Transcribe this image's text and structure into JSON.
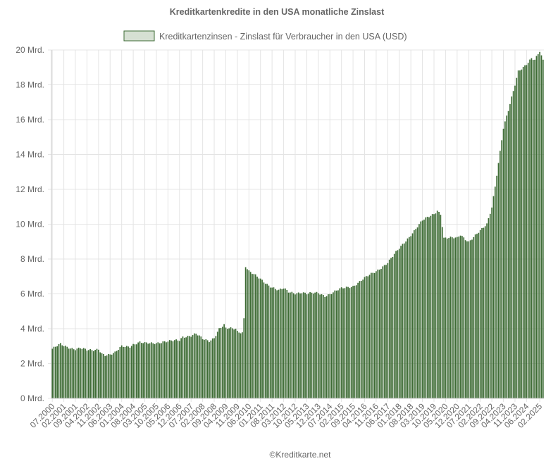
{
  "chart_data": {
    "type": "bar",
    "title": "Kreditkartenkredite in den USA monatliche Zinslast",
    "legend": {
      "label": "Kreditkartenzinsen - Zinslast für Verbraucher in den USA (USD)",
      "placement": "top-center"
    },
    "xlabel": "",
    "ylabel": "",
    "ylim": [
      0,
      20
    ],
    "y_unit": "Mrd.",
    "y_ticks": [
      0,
      2,
      4,
      6,
      8,
      10,
      12,
      14,
      16,
      18,
      20
    ],
    "y_tick_labels": [
      "0 Mrd.",
      "2 Mrd.",
      "4 Mrd.",
      "6 Mrd.",
      "8 Mrd.",
      "10 Mrd.",
      "12 Mrd.",
      "14 Mrd.",
      "16 Mrd.",
      "18 Mrd.",
      "20 Mrd."
    ],
    "x_tick_labels": [
      "07.2000",
      "02.2001",
      "09.2001",
      "04.2002",
      "11.2002",
      "06.2003",
      "01.2004",
      "08.2004",
      "03.2005",
      "10.2005",
      "05.2006",
      "12.2006",
      "07.2007",
      "02.2008",
      "09.2008",
      "04.2009",
      "11.2009",
      "06.2010",
      "01.2011",
      "08.2011",
      "03.2012",
      "10.2012",
      "05.2013",
      "12.2013",
      "07.2014",
      "02.2015",
      "09.2015",
      "04.2016",
      "11.2016",
      "06.2017",
      "01.2018",
      "08.2018",
      "03.2019",
      "10.2019",
      "05.2020",
      "12.2020",
      "07.2021",
      "02.2022",
      "09.2022",
      "04.2023",
      "11.2023",
      "06.2024",
      "02.2025"
    ],
    "grid": true,
    "colors": {
      "bar": "#3d6b34",
      "legend_fill": "#d6e0d3",
      "legend_stroke": "#3d6b34",
      "grid": "#e4e4e4",
      "text": "#666666"
    },
    "x_start": "07.2000",
    "x_end": "04.2025",
    "series": [
      {
        "name": "Kreditkartenzinsen - Zinslast für Verbraucher in den USA (USD)",
        "monthly_anchors": [
          [
            "07.2000",
            2.85
          ],
          [
            "09.2000",
            2.95
          ],
          [
            "12.2000",
            3.1
          ],
          [
            "02.2001",
            3.0
          ],
          [
            "06.2001",
            2.9
          ],
          [
            "09.2001",
            2.85
          ],
          [
            "12.2001",
            2.9
          ],
          [
            "04.2002",
            2.75
          ],
          [
            "08.2002",
            2.75
          ],
          [
            "11.2002",
            2.85
          ],
          [
            "01.2003",
            2.6
          ],
          [
            "03.2003",
            2.5
          ],
          [
            "06.2003",
            2.5
          ],
          [
            "09.2003",
            2.6
          ],
          [
            "01.2004",
            3.0
          ],
          [
            "06.2004",
            3.0
          ],
          [
            "08.2004",
            3.1
          ],
          [
            "12.2004",
            3.2
          ],
          [
            "03.2005",
            3.15
          ],
          [
            "10.2005",
            3.2
          ],
          [
            "02.2006",
            3.25
          ],
          [
            "05.2006",
            3.25
          ],
          [
            "12.2006",
            3.35
          ],
          [
            "02.2007",
            3.55
          ],
          [
            "07.2007",
            3.6
          ],
          [
            "10.2007",
            3.7
          ],
          [
            "02.2008",
            3.4
          ],
          [
            "06.2008",
            3.3
          ],
          [
            "09.2008",
            3.5
          ],
          [
            "12.2008",
            4.0
          ],
          [
            "03.2009",
            4.2
          ],
          [
            "04.2009",
            4.0
          ],
          [
            "10.2009",
            4.0
          ],
          [
            "11.2009",
            3.85
          ],
          [
            "02.2010",
            3.8
          ],
          [
            "03.2010",
            4.6
          ],
          [
            "04.2010",
            7.6
          ],
          [
            "06.2010",
            7.3
          ],
          [
            "12.2010",
            6.9
          ],
          [
            "06.2011",
            6.5
          ],
          [
            "08.2011",
            6.4
          ],
          [
            "12.2011",
            6.2
          ],
          [
            "03.2012",
            6.3
          ],
          [
            "06.2012",
            6.1
          ],
          [
            "10.2012",
            6.05
          ],
          [
            "02.2013",
            6.1
          ],
          [
            "05.2013",
            6.0
          ],
          [
            "12.2013",
            6.05
          ],
          [
            "04.2014",
            5.9
          ],
          [
            "07.2014",
            6.0
          ],
          [
            "02.2015",
            6.3
          ],
          [
            "09.2015",
            6.45
          ],
          [
            "04.2016",
            6.9
          ],
          [
            "11.2016",
            7.3
          ],
          [
            "06.2017",
            7.8
          ],
          [
            "01.2018",
            8.6
          ],
          [
            "08.2018",
            9.4
          ],
          [
            "03.2019",
            10.2
          ],
          [
            "10.2019",
            10.6
          ],
          [
            "12.2019",
            10.8
          ],
          [
            "02.2020",
            10.6
          ],
          [
            "04.2020",
            9.2
          ],
          [
            "05.2020",
            9.2
          ],
          [
            "12.2020",
            9.2
          ],
          [
            "02.2021",
            9.4
          ],
          [
            "07.2021",
            9.0
          ],
          [
            "02.2022",
            9.6
          ],
          [
            "06.2022",
            10.0
          ],
          [
            "09.2022",
            11.0
          ],
          [
            "11.2022",
            12.2
          ],
          [
            "04.2023",
            15.5
          ],
          [
            "07.2023",
            16.5
          ],
          [
            "11.2023",
            18.0
          ],
          [
            "01.2024",
            18.8
          ],
          [
            "06.2024",
            19.2
          ],
          [
            "09.2024",
            19.5
          ],
          [
            "11.2024",
            19.4
          ],
          [
            "02.2025",
            19.9
          ],
          [
            "04.2025",
            19.4
          ]
        ]
      }
    ]
  },
  "footer": {
    "copyright": "©Kreditkarte.net"
  }
}
